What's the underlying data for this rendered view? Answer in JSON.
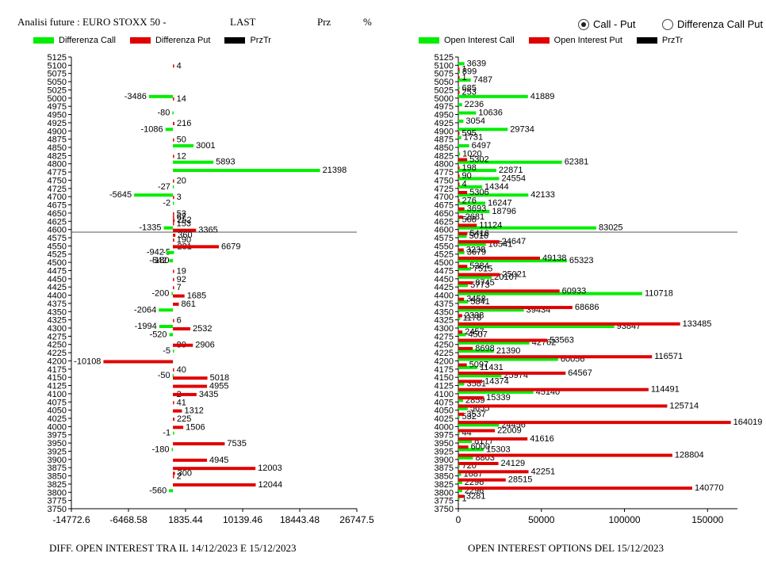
{
  "header": {
    "title": "Analisi future : EURO STOXX 50 -",
    "last": "LAST",
    "prz": "Prz",
    "pct": "%"
  },
  "mode": {
    "option1": "Call - Put",
    "option2": "Differenza Call Put",
    "selected": "Call - Put"
  },
  "colors": {
    "call": "#00ee00",
    "put": "#e00000",
    "prztr": "#000000",
    "line": "#555555"
  },
  "chart_data": [
    {
      "type": "bar",
      "orientation": "horizontal",
      "title": "DIFF. OPEN INTEREST TRA IL 14/12/2023 E 15/12/2023",
      "legend": [
        "Differenza Call",
        "Differenza Put",
        "PrzTr"
      ],
      "categories": [
        5125,
        5100,
        5075,
        5050,
        5025,
        5000,
        4975,
        4950,
        4925,
        4900,
        4875,
        4850,
        4825,
        4800,
        4775,
        4750,
        4725,
        4700,
        4675,
        4650,
        4625,
        4600,
        4575,
        4550,
        4525,
        4500,
        4475,
        4450,
        4425,
        4400,
        4375,
        4350,
        4325,
        4300,
        4275,
        4250,
        4225,
        4200,
        4175,
        4150,
        4125,
        4100,
        4075,
        4050,
        4025,
        4000,
        3975,
        3950,
        3925,
        3900,
        3875,
        3850,
        3825,
        3800,
        3775,
        3750
      ],
      "xticks": [
        "-14772.6",
        "-6468.58",
        "1835.44",
        "10139.46",
        "18443.48",
        "26747.5"
      ],
      "xlim": [
        -14772.6,
        26747.5
      ],
      "price_line": 4592,
      "series": [
        {
          "name": "Differenza Call",
          "points": [
            [
              5000,
              -3486
            ],
            [
              4950,
              -80
            ],
            [
              4900,
              -1086
            ],
            [
              4725,
              -27
            ],
            [
              4700,
              -5645
            ],
            [
              4675,
              -2
            ],
            [
              4600,
              -1335
            ],
            [
              4525,
              -5
            ],
            [
              4500,
              -542
            ],
            [
              4500,
              -180
            ],
            [
              4400,
              -200
            ],
            [
              4350,
              -2064
            ],
            [
              4300,
              -1994
            ],
            [
              4275,
              -520
            ],
            [
              4225,
              -5
            ],
            [
              4150,
              -50
            ],
            [
              3975,
              -1
            ],
            [
              3925,
              -180
            ],
            [
              3800,
              -560
            ],
            [
              4800,
              5893
            ],
            [
              4775,
              21398
            ],
            [
              4850,
              3001
            ],
            [
              4525,
              -942
            ]
          ]
        },
        {
          "name": "Differenza Put",
          "points": [
            [
              5100,
              4
            ],
            [
              5000,
              14
            ],
            [
              4925,
              216
            ],
            [
              4875,
              50
            ],
            [
              4825,
              12
            ],
            [
              4750,
              20
            ],
            [
              4700,
              3
            ],
            [
              4650,
              53
            ],
            [
              4640,
              67
            ],
            [
              4630,
              252
            ],
            [
              4620,
              153
            ],
            [
              4600,
              3365
            ],
            [
              4585,
              360
            ],
            [
              4570,
              190
            ],
            [
              4550,
              281
            ],
            [
              4550,
              6679
            ],
            [
              4475,
              19
            ],
            [
              4450,
              92
            ],
            [
              4425,
              7
            ],
            [
              4400,
              1685
            ],
            [
              4375,
              861
            ],
            [
              4325,
              6
            ],
            [
              4300,
              2532
            ],
            [
              4250,
              80
            ],
            [
              4250,
              2906
            ],
            [
              4200,
              -10108
            ],
            [
              4175,
              40
            ],
            [
              4150,
              5018
            ],
            [
              4125,
              4955
            ],
            [
              4100,
              2
            ],
            [
              4100,
              3435
            ],
            [
              4075,
              41
            ],
            [
              4050,
              1312
            ],
            [
              4025,
              225
            ],
            [
              4000,
              1506
            ],
            [
              3950,
              7535
            ],
            [
              3900,
              4945
            ],
            [
              3875,
              12003
            ],
            [
              3860,
              300
            ],
            [
              3850,
              2
            ],
            [
              3825,
              12044
            ]
          ]
        }
      ]
    },
    {
      "type": "bar",
      "orientation": "horizontal",
      "title": "OPEN INTEREST OPTIONS DEL 15/12/2023",
      "legend": [
        "Open Interest Call",
        "Open Interest Put",
        "PrzTr"
      ],
      "xticks": [
        "0",
        "50000",
        "100000",
        "150000"
      ],
      "xlim": [
        0,
        168000
      ],
      "price_line": 4592,
      "series": [
        {
          "name": "Open Interest Call",
          "points": [
            [
              5100,
              3639
            ],
            [
              5075,
              899
            ],
            [
              5050,
              7487
            ],
            [
              5025,
              685
            ],
            [
              5000,
              41889
            ],
            [
              4975,
              2236
            ],
            [
              4950,
              10636
            ],
            [
              4925,
              3054
            ],
            [
              4900,
              29734
            ],
            [
              4875,
              1731
            ],
            [
              4850,
              6497
            ],
            [
              4825,
              1020
            ],
            [
              4800,
              62381
            ],
            [
              4775,
              22871
            ],
            [
              4750,
              24554
            ],
            [
              4725,
              14344
            ],
            [
              4700,
              42133
            ],
            [
              4675,
              16247
            ],
            [
              4650,
              18796
            ],
            [
              4625,
              568
            ],
            [
              4600,
              83025
            ],
            [
              4575,
              5016
            ],
            [
              4550,
              16541
            ],
            [
              4525,
              3679
            ],
            [
              4500,
              65323
            ],
            [
              4475,
              7515
            ],
            [
              4450,
              20107
            ],
            [
              4425,
              5773
            ],
            [
              4400,
              110718
            ],
            [
              4375,
              5841
            ],
            [
              4350,
              39434
            ],
            [
              4325,
              1178
            ],
            [
              4300,
              93847
            ],
            [
              4275,
              4507
            ],
            [
              4250,
              42762
            ],
            [
              4225,
              21390
            ],
            [
              4200,
              60056
            ],
            [
              4175,
              11431
            ],
            [
              4150,
              25974
            ],
            [
              4125,
              3581
            ],
            [
              4100,
              45140
            ],
            [
              4075,
              2859
            ],
            [
              4050,
              5655
            ],
            [
              4025,
              532
            ],
            [
              4000,
              24456
            ],
            [
              3975,
              44
            ],
            [
              3950,
              8177
            ],
            [
              3925,
              15303
            ],
            [
              3900,
              8803
            ],
            [
              3875,
              720
            ],
            [
              3850,
              1687
            ],
            [
              3825,
              2296
            ],
            [
              3800,
              2296
            ],
            [
              3775,
              1
            ]
          ]
        },
        {
          "name": "Open Interest Put",
          "points": [
            [
              5090,
              1
            ],
            [
              5065,
              1
            ],
            [
              5020,
              253
            ],
            [
              4895,
              595
            ],
            [
              4815,
              5302
            ],
            [
              4790,
              198
            ],
            [
              4765,
              90
            ],
            [
              4740,
              4
            ],
            [
              4715,
              5306
            ],
            [
              4690,
              276
            ],
            [
              4665,
              3693
            ],
            [
              4640,
              2681
            ],
            [
              4615,
              11124
            ],
            [
              4590,
              5416
            ],
            [
              4565,
              24647
            ],
            [
              4540,
              3238
            ],
            [
              4515,
              49138
            ],
            [
              4490,
              5384
            ],
            [
              4465,
              25021
            ],
            [
              4440,
              8745
            ],
            [
              4415,
              60933
            ],
            [
              4390,
              3458
            ],
            [
              4365,
              68686
            ],
            [
              4340,
              2338
            ],
            [
              4315,
              133485
            ],
            [
              4290,
              2457
            ],
            [
              4265,
              53563
            ],
            [
              4240,
              8698
            ],
            [
              4215,
              116571
            ],
            [
              4190,
              5097
            ],
            [
              4165,
              64567
            ],
            [
              4140,
              14374
            ],
            [
              4115,
              114491
            ],
            [
              4090,
              15339
            ],
            [
              4065,
              125714
            ],
            [
              4040,
              3537
            ],
            [
              4015,
              164019
            ],
            [
              3990,
              22009
            ],
            [
              3965,
              41616
            ],
            [
              3940,
              6000
            ],
            [
              3915,
              128804
            ],
            [
              3890,
              24129
            ],
            [
              3865,
              42251
            ],
            [
              3840,
              28515
            ],
            [
              3815,
              140770
            ],
            [
              3790,
              3281
            ]
          ]
        }
      ]
    }
  ],
  "footer": {
    "left": "DIFF. OPEN INTEREST TRA IL 14/12/2023 E 15/12/2023",
    "right": "OPEN INTEREST OPTIONS DEL 15/12/2023"
  }
}
